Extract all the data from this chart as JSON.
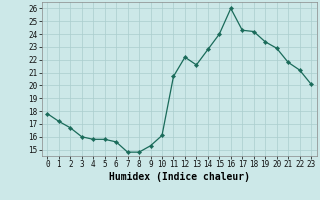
{
  "x": [
    0,
    1,
    2,
    3,
    4,
    5,
    6,
    7,
    8,
    9,
    10,
    11,
    12,
    13,
    14,
    15,
    16,
    17,
    18,
    19,
    20,
    21,
    22,
    23
  ],
  "y": [
    17.8,
    17.2,
    16.7,
    16.0,
    15.8,
    15.8,
    15.6,
    14.8,
    14.8,
    15.3,
    16.1,
    20.7,
    22.2,
    21.6,
    22.8,
    24.0,
    26.0,
    24.3,
    24.2,
    23.4,
    22.9,
    21.8,
    21.2,
    20.1
  ],
  "xlabel": "Humidex (Indice chaleur)",
  "xlim": [
    -0.5,
    23.5
  ],
  "ylim": [
    14.5,
    26.5
  ],
  "yticks": [
    15,
    16,
    17,
    18,
    19,
    20,
    21,
    22,
    23,
    24,
    25,
    26
  ],
  "xticks": [
    0,
    1,
    2,
    3,
    4,
    5,
    6,
    7,
    8,
    9,
    10,
    11,
    12,
    13,
    14,
    15,
    16,
    17,
    18,
    19,
    20,
    21,
    22,
    23
  ],
  "line_color": "#1a6b5a",
  "marker_color": "#1a6b5a",
  "bg_color": "#cce8e8",
  "grid_color": "#aacece",
  "tick_fontsize": 5.5,
  "xlabel_fontsize": 7.0,
  "marker_size": 2.2,
  "linewidth": 0.9
}
